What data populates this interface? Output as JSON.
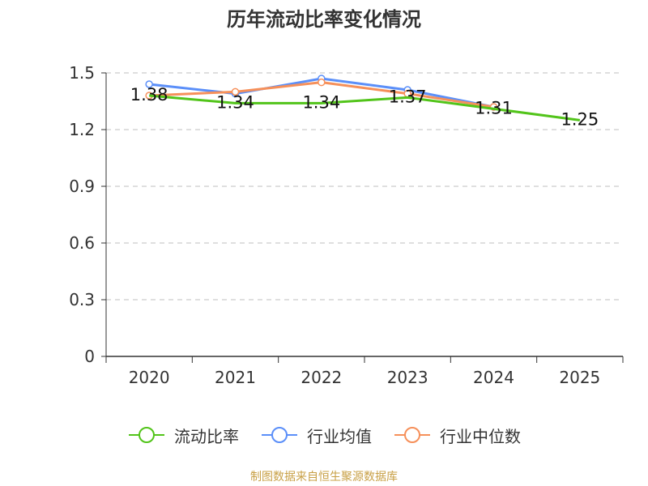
{
  "chart_data": {
    "type": "line",
    "title": "历年流动比率变化情况",
    "categories": [
      "2020",
      "2021",
      "2022",
      "2023",
      "2024",
      "2025"
    ],
    "ylim": [
      0,
      1.5
    ],
    "yticks": [
      0,
      0.3,
      0.6,
      0.9,
      1.2,
      1.5
    ],
    "ytick_labels": [
      "0",
      "0.3",
      "0.6",
      "0.9",
      "1.2",
      "1.5"
    ],
    "grid": true,
    "legend_position": "bottom",
    "series": [
      {
        "name": "流动比率",
        "color": "#52c41a",
        "values": [
          1.38,
          1.34,
          1.34,
          1.37,
          1.31,
          1.25
        ],
        "labels": [
          "1.38",
          "1.34",
          "1.34",
          "1.37",
          "1.31",
          "1.25"
        ]
      },
      {
        "name": "行业均值",
        "color": "#5b8ff9",
        "values": [
          1.44,
          1.39,
          1.47,
          1.41,
          1.32,
          null
        ]
      },
      {
        "name": "行业中位数",
        "color": "#f6905a",
        "values": [
          1.38,
          1.4,
          1.45,
          1.39,
          1.32,
          null
        ]
      }
    ]
  },
  "source": "制图数据来自恒生聚源数据库"
}
